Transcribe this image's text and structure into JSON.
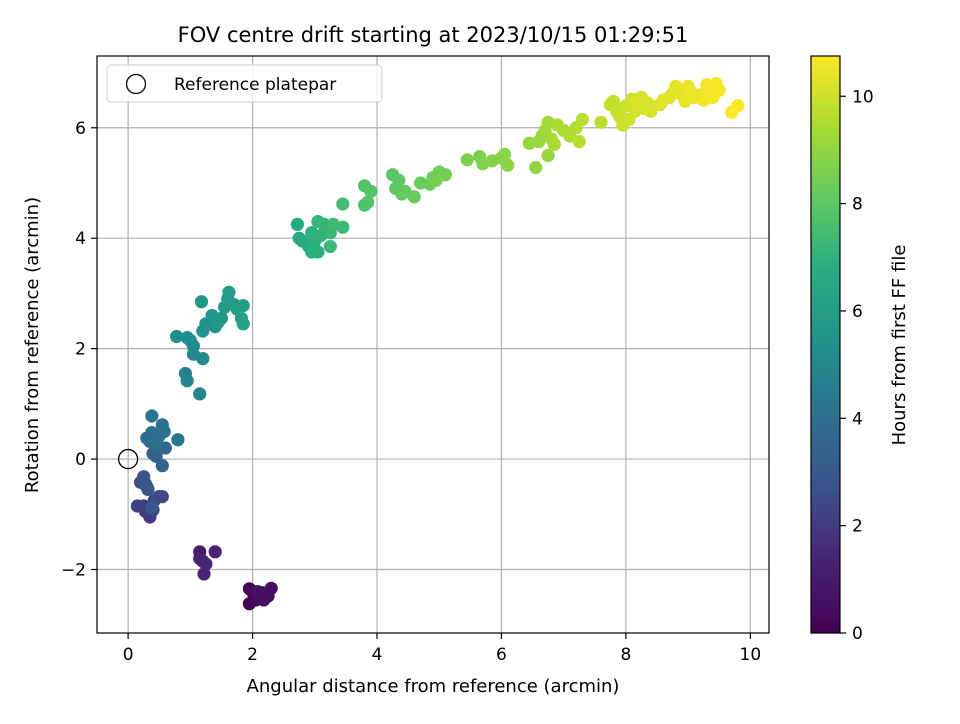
{
  "chart_data": {
    "type": "scatter",
    "title": "FOV centre drift starting at 2023/10/15 01:29:51",
    "xlabel": "Angular distance from reference (arcmin)",
    "ylabel": "Rotation from reference (arcmin)",
    "colorbar_label": "Hours from first FF file",
    "xlim": [
      -0.5,
      10.3
    ],
    "ylim": [
      -3.15,
      7.3
    ],
    "clim": [
      0,
      10.75
    ],
    "xticks": [
      "0",
      "2",
      "4",
      "6",
      "8",
      "10"
    ],
    "yticks": [
      "−2",
      "0",
      "2",
      "4",
      "6"
    ],
    "cticks": [
      "0",
      "2",
      "4",
      "6",
      "8",
      "10"
    ],
    "grid": true,
    "colormap": "viridis",
    "legend": {
      "placement": "upper-left",
      "entries": [
        {
          "label": "Reference platepar",
          "marker": "open-circle"
        }
      ]
    },
    "reference_point": {
      "x": 0,
      "y": 0
    },
    "points": [
      {
        "x": 1.95,
        "y": -2.62,
        "c": 0.05
      },
      {
        "x": 2.02,
        "y": -2.45,
        "c": 0.12
      },
      {
        "x": 2.1,
        "y": -2.5,
        "c": 0.18
      },
      {
        "x": 1.95,
        "y": -2.35,
        "c": 0.25
      },
      {
        "x": 2.05,
        "y": -2.55,
        "c": 0.32
      },
      {
        "x": 2.15,
        "y": -2.42,
        "c": 0.38
      },
      {
        "x": 2.25,
        "y": -2.48,
        "c": 0.45
      },
      {
        "x": 2.3,
        "y": -2.34,
        "c": 0.52
      },
      {
        "x": 2.18,
        "y": -2.55,
        "c": 0.58
      },
      {
        "x": 2.08,
        "y": -2.4,
        "c": 0.65
      },
      {
        "x": 1.15,
        "y": -1.68,
        "c": 1.2
      },
      {
        "x": 1.2,
        "y": -1.85,
        "c": 1.25
      },
      {
        "x": 1.15,
        "y": -1.8,
        "c": 1.3
      },
      {
        "x": 1.22,
        "y": -2.08,
        "c": 1.35
      },
      {
        "x": 1.25,
        "y": -1.9,
        "c": 1.4
      },
      {
        "x": 1.4,
        "y": -1.68,
        "c": 1.45
      },
      {
        "x": 0.25,
        "y": -0.85,
        "c": 2.0
      },
      {
        "x": 0.35,
        "y": -1.05,
        "c": 2.05
      },
      {
        "x": 0.28,
        "y": -0.95,
        "c": 2.1
      },
      {
        "x": 0.4,
        "y": -0.92,
        "c": 2.15
      },
      {
        "x": 0.15,
        "y": -0.85,
        "c": 2.2
      },
      {
        "x": 0.5,
        "y": -0.68,
        "c": 2.3
      },
      {
        "x": 0.55,
        "y": -0.68,
        "c": 2.4
      },
      {
        "x": 0.42,
        "y": -0.75,
        "c": 2.45
      },
      {
        "x": 0.3,
        "y": -0.5,
        "c": 2.5
      },
      {
        "x": 0.2,
        "y": -0.42,
        "c": 2.6
      },
      {
        "x": 0.25,
        "y": -0.32,
        "c": 2.7
      },
      {
        "x": 0.28,
        "y": -0.45,
        "c": 2.8
      },
      {
        "x": 0.32,
        "y": -0.55,
        "c": 2.9
      },
      {
        "x": 0.38,
        "y": -0.88,
        "c": 2.95
      },
      {
        "x": 0.4,
        "y": 0.1,
        "c": 3.3
      },
      {
        "x": 0.45,
        "y": 0.05,
        "c": 3.4
      },
      {
        "x": 0.55,
        "y": -0.12,
        "c": 3.5
      },
      {
        "x": 0.48,
        "y": 0.2,
        "c": 3.55
      },
      {
        "x": 0.6,
        "y": 0.2,
        "c": 3.6
      },
      {
        "x": 0.35,
        "y": 0.32,
        "c": 3.7
      },
      {
        "x": 0.3,
        "y": 0.38,
        "c": 3.75
      },
      {
        "x": 0.38,
        "y": 0.48,
        "c": 3.8
      },
      {
        "x": 0.5,
        "y": 0.42,
        "c": 3.9
      },
      {
        "x": 0.55,
        "y": 0.62,
        "c": 4.0
      },
      {
        "x": 0.58,
        "y": 0.5,
        "c": 4.05
      },
      {
        "x": 0.45,
        "y": 0.3,
        "c": 4.1
      },
      {
        "x": 0.38,
        "y": 0.78,
        "c": 4.15
      },
      {
        "x": 0.8,
        "y": 0.35,
        "c": 4.2
      },
      {
        "x": 0.92,
        "y": 1.55,
        "c": 4.8
      },
      {
        "x": 0.95,
        "y": 1.42,
        "c": 4.85
      },
      {
        "x": 1.15,
        "y": 1.18,
        "c": 4.9
      },
      {
        "x": 1.05,
        "y": 1.9,
        "c": 5.0
      },
      {
        "x": 1.2,
        "y": 1.82,
        "c": 5.05
      },
      {
        "x": 1.05,
        "y": 2.05,
        "c": 5.1
      },
      {
        "x": 0.95,
        "y": 2.2,
        "c": 5.15
      },
      {
        "x": 0.78,
        "y": 2.22,
        "c": 5.2
      },
      {
        "x": 1.0,
        "y": 2.15,
        "c": 5.25
      },
      {
        "x": 1.2,
        "y": 2.32,
        "c": 5.4
      },
      {
        "x": 1.25,
        "y": 2.45,
        "c": 5.45
      },
      {
        "x": 1.4,
        "y": 2.4,
        "c": 5.5
      },
      {
        "x": 1.35,
        "y": 2.6,
        "c": 5.55
      },
      {
        "x": 1.5,
        "y": 2.55,
        "c": 5.6
      },
      {
        "x": 1.45,
        "y": 2.48,
        "c": 5.65
      },
      {
        "x": 1.18,
        "y": 2.85,
        "c": 5.7
      },
      {
        "x": 1.55,
        "y": 2.75,
        "c": 5.8
      },
      {
        "x": 1.6,
        "y": 2.9,
        "c": 5.85
      },
      {
        "x": 1.62,
        "y": 3.02,
        "c": 5.9
      },
      {
        "x": 1.7,
        "y": 2.8,
        "c": 5.95
      },
      {
        "x": 1.75,
        "y": 2.72,
        "c": 6.0
      },
      {
        "x": 1.85,
        "y": 2.78,
        "c": 6.05
      },
      {
        "x": 1.82,
        "y": 2.55,
        "c": 6.1
      },
      {
        "x": 1.85,
        "y": 2.45,
        "c": 6.15
      },
      {
        "x": 2.72,
        "y": 4.25,
        "c": 6.6
      },
      {
        "x": 2.8,
        "y": 3.95,
        "c": 6.65
      },
      {
        "x": 2.75,
        "y": 4.0,
        "c": 6.7
      },
      {
        "x": 2.9,
        "y": 3.85,
        "c": 6.75
      },
      {
        "x": 2.95,
        "y": 3.75,
        "c": 6.8
      },
      {
        "x": 3.05,
        "y": 3.75,
        "c": 6.85
      },
      {
        "x": 3.0,
        "y": 3.95,
        "c": 6.9
      },
      {
        "x": 2.95,
        "y": 4.1,
        "c": 6.95
      },
      {
        "x": 3.1,
        "y": 4.05,
        "c": 7.0
      },
      {
        "x": 3.2,
        "y": 4.15,
        "c": 7.05
      },
      {
        "x": 3.15,
        "y": 4.25,
        "c": 7.1
      },
      {
        "x": 3.25,
        "y": 4.1,
        "c": 7.15
      },
      {
        "x": 3.05,
        "y": 4.3,
        "c": 7.2
      },
      {
        "x": 3.25,
        "y": 3.85,
        "c": 7.25
      },
      {
        "x": 3.45,
        "y": 4.2,
        "c": 7.3
      },
      {
        "x": 3.3,
        "y": 4.25,
        "c": 7.35
      },
      {
        "x": 3.45,
        "y": 4.62,
        "c": 7.45
      },
      {
        "x": 3.8,
        "y": 4.6,
        "c": 7.7
      },
      {
        "x": 3.85,
        "y": 4.65,
        "c": 7.75
      },
      {
        "x": 3.8,
        "y": 4.95,
        "c": 7.8
      },
      {
        "x": 3.9,
        "y": 4.85,
        "c": 7.85
      },
      {
        "x": 4.25,
        "y": 5.15,
        "c": 7.95
      },
      {
        "x": 4.35,
        "y": 5.05,
        "c": 8.0
      },
      {
        "x": 4.3,
        "y": 4.9,
        "c": 8.05
      },
      {
        "x": 4.4,
        "y": 4.8,
        "c": 8.1
      },
      {
        "x": 4.45,
        "y": 4.85,
        "c": 8.15
      },
      {
        "x": 4.6,
        "y": 4.75,
        "c": 8.2
      },
      {
        "x": 4.7,
        "y": 5.0,
        "c": 8.25
      },
      {
        "x": 4.85,
        "y": 4.98,
        "c": 8.3
      },
      {
        "x": 4.9,
        "y": 5.1,
        "c": 8.35
      },
      {
        "x": 5.0,
        "y": 5.2,
        "c": 8.4
      },
      {
        "x": 5.1,
        "y": 5.15,
        "c": 8.45
      },
      {
        "x": 4.95,
        "y": 5.05,
        "c": 8.5
      },
      {
        "x": 5.45,
        "y": 5.42,
        "c": 8.6
      },
      {
        "x": 5.65,
        "y": 5.48,
        "c": 8.65
      },
      {
        "x": 5.7,
        "y": 5.35,
        "c": 8.7
      },
      {
        "x": 5.85,
        "y": 5.4,
        "c": 8.75
      },
      {
        "x": 6.0,
        "y": 5.45,
        "c": 8.8
      },
      {
        "x": 6.05,
        "y": 5.52,
        "c": 8.85
      },
      {
        "x": 6.1,
        "y": 5.32,
        "c": 8.9
      },
      {
        "x": 6.55,
        "y": 5.28,
        "c": 9.0
      },
      {
        "x": 6.75,
        "y": 5.5,
        "c": 9.05
      },
      {
        "x": 6.45,
        "y": 5.72,
        "c": 9.1
      },
      {
        "x": 6.6,
        "y": 5.75,
        "c": 9.15
      },
      {
        "x": 6.65,
        "y": 5.85,
        "c": 9.2
      },
      {
        "x": 6.7,
        "y": 5.95,
        "c": 9.25
      },
      {
        "x": 6.75,
        "y": 6.1,
        "c": 9.3
      },
      {
        "x": 6.8,
        "y": 5.8,
        "c": 9.35
      },
      {
        "x": 6.85,
        "y": 5.7,
        "c": 9.4
      },
      {
        "x": 6.9,
        "y": 6.05,
        "c": 9.45
      },
      {
        "x": 7.0,
        "y": 5.95,
        "c": 9.5
      },
      {
        "x": 7.1,
        "y": 5.85,
        "c": 9.55
      },
      {
        "x": 7.2,
        "y": 6.0,
        "c": 9.6
      },
      {
        "x": 7.25,
        "y": 5.75,
        "c": 9.65
      },
      {
        "x": 7.3,
        "y": 6.15,
        "c": 9.7
      },
      {
        "x": 7.6,
        "y": 6.1,
        "c": 9.75
      },
      {
        "x": 7.75,
        "y": 6.42,
        "c": 9.8
      },
      {
        "x": 7.8,
        "y": 6.48,
        "c": 9.85
      },
      {
        "x": 7.85,
        "y": 6.3,
        "c": 9.9
      },
      {
        "x": 7.9,
        "y": 6.2,
        "c": 9.95
      },
      {
        "x": 7.95,
        "y": 6.05,
        "c": 10.0
      },
      {
        "x": 8.0,
        "y": 6.4,
        "c": 10.02
      },
      {
        "x": 8.05,
        "y": 6.15,
        "c": 10.05
      },
      {
        "x": 8.1,
        "y": 6.52,
        "c": 10.08
      },
      {
        "x": 8.15,
        "y": 6.3,
        "c": 10.1
      },
      {
        "x": 8.2,
        "y": 6.4,
        "c": 10.12
      },
      {
        "x": 8.25,
        "y": 6.55,
        "c": 10.15
      },
      {
        "x": 8.3,
        "y": 6.35,
        "c": 10.18
      },
      {
        "x": 8.35,
        "y": 6.45,
        "c": 10.2
      },
      {
        "x": 8.4,
        "y": 6.3,
        "c": 10.22
      },
      {
        "x": 8.55,
        "y": 6.42,
        "c": 10.25
      },
      {
        "x": 8.6,
        "y": 6.5,
        "c": 10.28
      },
      {
        "x": 8.7,
        "y": 6.55,
        "c": 10.3
      },
      {
        "x": 8.75,
        "y": 6.62,
        "c": 10.32
      },
      {
        "x": 8.8,
        "y": 6.75,
        "c": 10.35
      },
      {
        "x": 8.85,
        "y": 6.7,
        "c": 10.38
      },
      {
        "x": 8.9,
        "y": 6.6,
        "c": 10.4
      },
      {
        "x": 8.95,
        "y": 6.48,
        "c": 10.42
      },
      {
        "x": 9.0,
        "y": 6.75,
        "c": 10.45
      },
      {
        "x": 9.05,
        "y": 6.65,
        "c": 10.48
      },
      {
        "x": 9.1,
        "y": 6.55,
        "c": 10.5
      },
      {
        "x": 9.2,
        "y": 6.6,
        "c": 10.52
      },
      {
        "x": 9.25,
        "y": 6.5,
        "c": 10.55
      },
      {
        "x": 9.3,
        "y": 6.78,
        "c": 10.58
      },
      {
        "x": 9.35,
        "y": 6.62,
        "c": 10.6
      },
      {
        "x": 9.4,
        "y": 6.55,
        "c": 10.62
      },
      {
        "x": 9.45,
        "y": 6.8,
        "c": 10.64
      },
      {
        "x": 9.5,
        "y": 6.68,
        "c": 10.66
      },
      {
        "x": 9.7,
        "y": 6.28,
        "c": 10.7
      },
      {
        "x": 9.8,
        "y": 6.4,
        "c": 10.72
      }
    ]
  }
}
